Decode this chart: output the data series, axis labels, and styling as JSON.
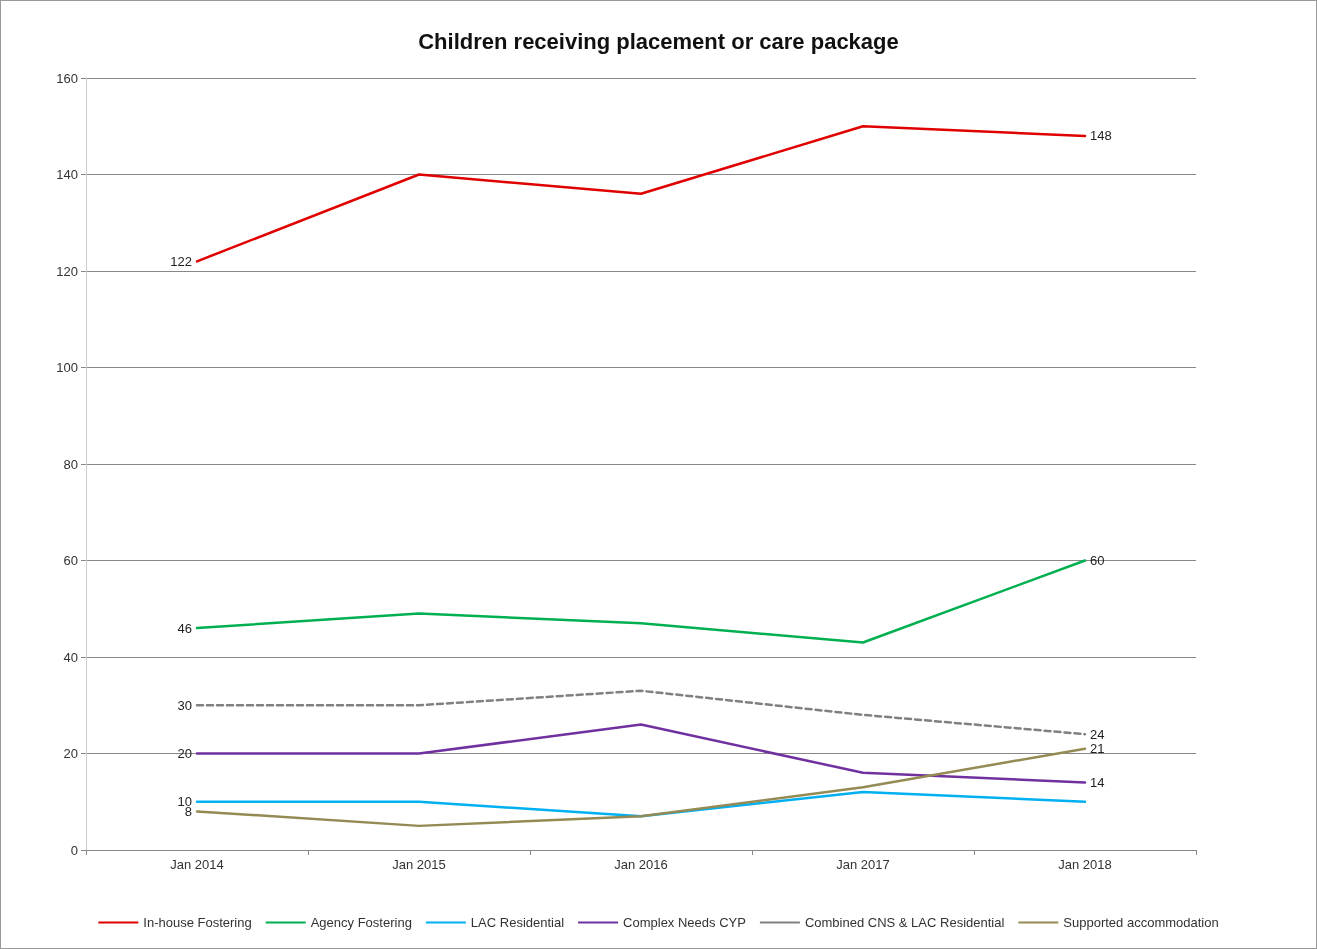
{
  "chart_data": {
    "type": "line",
    "title": "Children receiving placement or care package",
    "categories": [
      "Jan 2014",
      "Jan 2015",
      "Jan 2016",
      "Jan 2017",
      "Jan 2018"
    ],
    "series": [
      {
        "name": "In-house Fostering",
        "color": "#e00000",
        "values": [
          122,
          140,
          136,
          150,
          148
        ],
        "value_labels": [
          "122",
          null,
          null,
          null,
          "148"
        ]
      },
      {
        "name": "Agency Fostering",
        "color": "#00b050",
        "values": [
          46,
          49,
          47,
          43,
          60
        ],
        "value_labels": [
          "46",
          null,
          null,
          null,
          "60"
        ]
      },
      {
        "name": "LAC Residential",
        "color": "#00b0f0",
        "values": [
          10,
          10,
          7,
          12,
          10
        ],
        "value_labels": [
          "10",
          null,
          null,
          null,
          null
        ]
      },
      {
        "name": "Complex Needs CYP",
        "color": "#7030a0",
        "values": [
          20,
          20,
          26,
          16,
          14
        ],
        "value_labels": [
          "20",
          null,
          null,
          null,
          "14"
        ]
      },
      {
        "name": "Combined CNS & LAC Residential",
        "color": "#808080",
        "line_style": "dashed",
        "values": [
          30,
          30,
          33,
          28,
          24
        ],
        "value_labels": [
          "30",
          null,
          null,
          null,
          "24"
        ]
      },
      {
        "name": "Supported accommodation",
        "color": "#948a54",
        "values": [
          8,
          5,
          7,
          13,
          21
        ],
        "value_labels": [
          "8",
          null,
          null,
          null,
          "21"
        ]
      }
    ],
    "ylim": [
      0,
      160
    ],
    "yticks": [
      0,
      20,
      40,
      60,
      80,
      100,
      120,
      140,
      160
    ],
    "grid": "y",
    "legend": "bottom",
    "marker": "none",
    "line_style": "solid"
  }
}
